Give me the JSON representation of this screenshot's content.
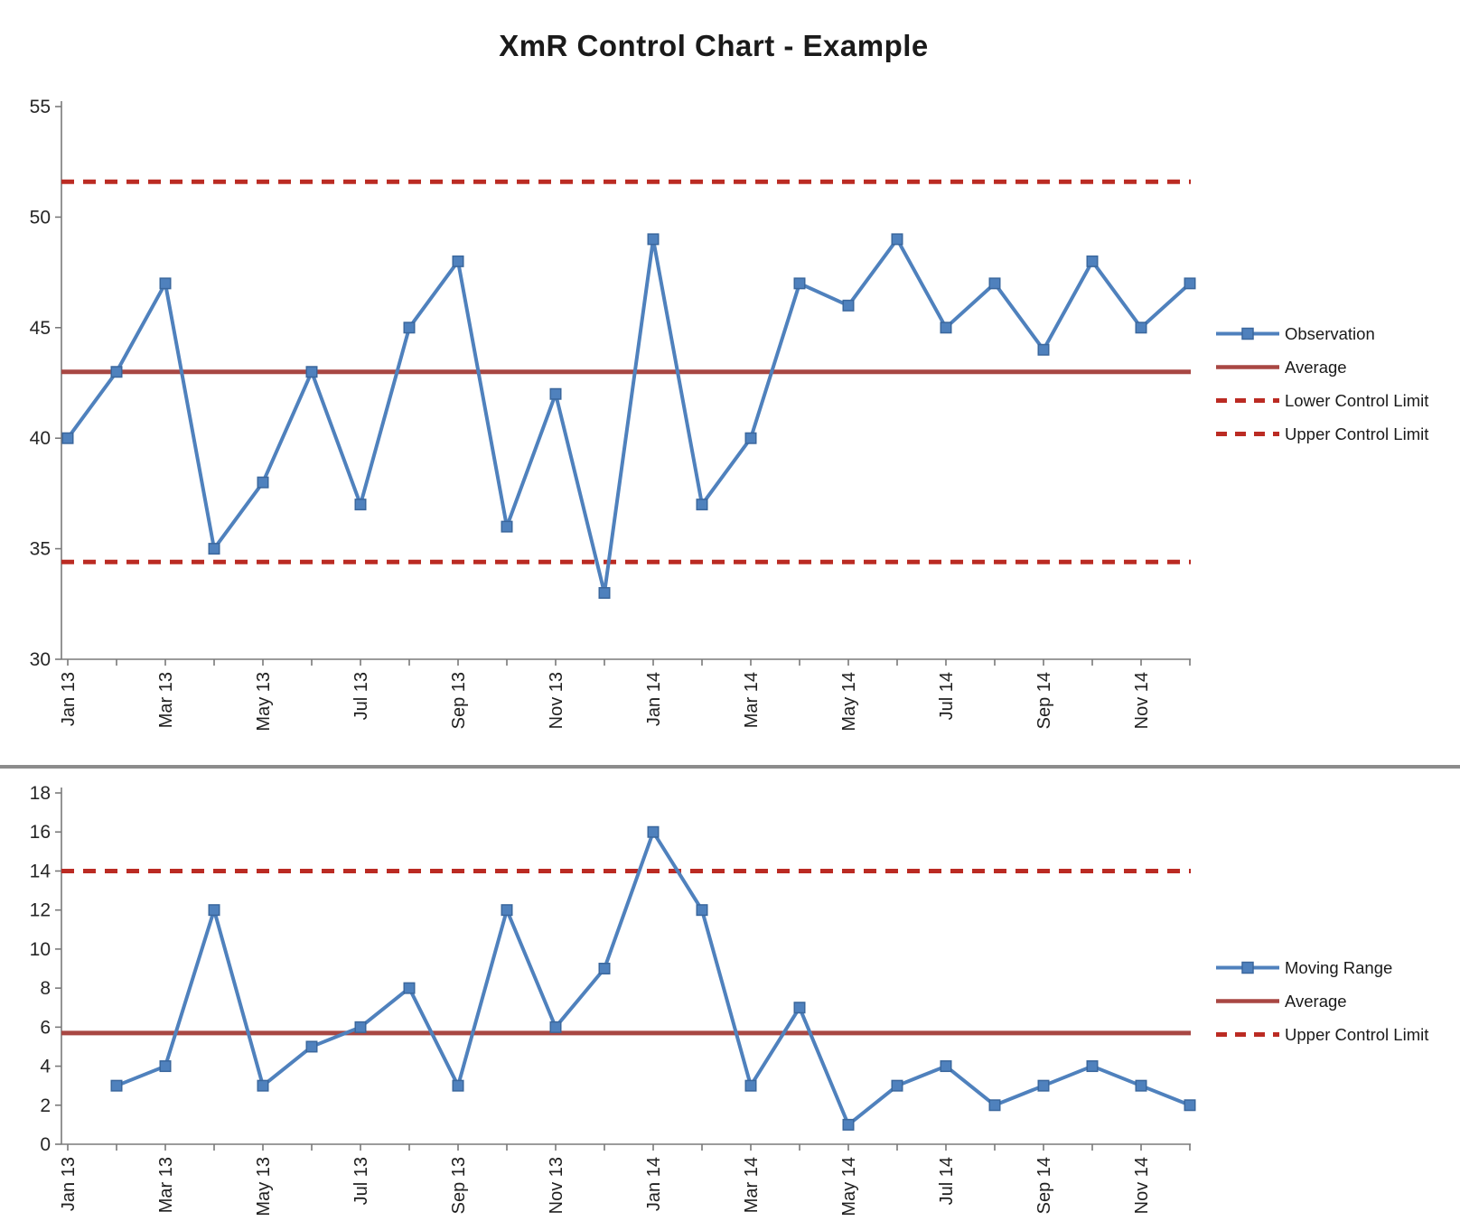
{
  "title": "XmR Control Chart - Example",
  "colors": {
    "series_blue": "#4F81BD",
    "marker_border": "#3A679D",
    "average_red": "#A84743",
    "limit_red": "#BB2B23",
    "divider_gray": "#8C8C8C",
    "axis_gray": "#7A7A7A",
    "label_dark": "#262626"
  },
  "chart_data": [
    {
      "id": "observation",
      "type": "line",
      "title": "XmR Control Chart - Example",
      "x_categories": [
        "Jan 13",
        "Feb 13",
        "Mar 13",
        "Apr 13",
        "May 13",
        "Jun 13",
        "Jul 13",
        "Aug 13",
        "Sep 13",
        "Oct 13",
        "Nov 13",
        "Dec 13",
        "Jan 14",
        "Feb 14",
        "Mar 14",
        "Apr 14",
        "May 14",
        "Jun 14",
        "Jul 14",
        "Aug 14",
        "Sep 14",
        "Oct 14",
        "Nov 14",
        "Dec 14"
      ],
      "x_tick_labels": [
        "Jan 13",
        "Mar 13",
        "May 13",
        "Jul 13",
        "Sep 13",
        "Nov 13",
        "Jan 14",
        "Mar 14",
        "May 14",
        "Jul 14",
        "Sep 14",
        "Nov 14"
      ],
      "x_tick_label_month_indices": [
        0,
        2,
        4,
        6,
        8,
        10,
        12,
        14,
        16,
        18,
        20,
        22
      ],
      "x_start_index": 0,
      "series": [
        {
          "name": "Observation",
          "values": [
            40,
            43,
            47,
            35,
            38,
            43,
            37,
            45,
            48,
            36,
            42,
            33,
            49,
            37,
            40,
            47,
            46,
            49,
            45,
            47,
            44,
            48,
            45,
            47
          ]
        }
      ],
      "reference_lines": [
        {
          "name": "Average",
          "value": 43,
          "style": "solid"
        },
        {
          "name": "Lower Control Limit",
          "value": 34.4,
          "style": "dashed"
        },
        {
          "name": "Upper Control Limit",
          "value": 51.6,
          "style": "dashed"
        }
      ],
      "ylim": [
        30,
        55
      ],
      "y_ticks": [
        30,
        35,
        40,
        45,
        50,
        55
      ],
      "y_tick_labels": [
        "30",
        "35",
        "40",
        "45",
        "50",
        "55"
      ],
      "grid": false,
      "legend_position": "right"
    },
    {
      "id": "moving_range",
      "type": "line",
      "title": "",
      "x_categories": [
        "Feb 13",
        "Mar 13",
        "Apr 13",
        "May 13",
        "Jun 13",
        "Jul 13",
        "Aug 13",
        "Sep 13",
        "Oct 13",
        "Nov 13",
        "Dec 13",
        "Jan 14",
        "Feb 14",
        "Mar 14",
        "Apr 14",
        "May 14",
        "Jun 14",
        "Jul 14",
        "Aug 14",
        "Sep 14",
        "Oct 14",
        "Nov 14",
        "Dec 14"
      ],
      "x_tick_labels": [
        "Jan 13",
        "Mar 13",
        "May 13",
        "Jul 13",
        "Sep 13",
        "Nov 13",
        "Jan 14",
        "Mar 14",
        "May 14",
        "Jul 14",
        "Sep 14",
        "Nov 14"
      ],
      "x_tick_label_month_indices": [
        0,
        2,
        4,
        6,
        8,
        10,
        12,
        14,
        16,
        18,
        20,
        22
      ],
      "x_start_index": 1,
      "series": [
        {
          "name": "Moving Range",
          "values": [
            3,
            4,
            12,
            3,
            5,
            6,
            8,
            3,
            12,
            6,
            9,
            16,
            12,
            3,
            7,
            1,
            3,
            4,
            2,
            3,
            4,
            3,
            2
          ]
        }
      ],
      "reference_lines": [
        {
          "name": "Average",
          "value": 5.7,
          "style": "solid"
        },
        {
          "name": "Upper Control Limit",
          "value": 14,
          "style": "dashed"
        }
      ],
      "ylim": [
        0,
        18
      ],
      "y_ticks": [
        0,
        2,
        4,
        6,
        8,
        10,
        12,
        14,
        16,
        18
      ],
      "y_tick_labels": [
        "0",
        "2",
        "4",
        "6",
        "8",
        "10",
        "12",
        "14",
        "16",
        "18"
      ],
      "grid": false,
      "legend_position": "right"
    }
  ],
  "legends": {
    "top": {
      "items": [
        {
          "label": "Observation",
          "swatch": "marker"
        },
        {
          "label": "Average",
          "swatch": "solid"
        },
        {
          "label": "Lower Control Limit",
          "swatch": "dashed"
        },
        {
          "label": "Upper Control Limit",
          "swatch": "dashed"
        }
      ]
    },
    "bottom": {
      "items": [
        {
          "label": "Moving Range",
          "swatch": "marker"
        },
        {
          "label": "Average",
          "swatch": "solid"
        },
        {
          "label": "Upper Control Limit",
          "swatch": "dashed"
        }
      ]
    }
  }
}
